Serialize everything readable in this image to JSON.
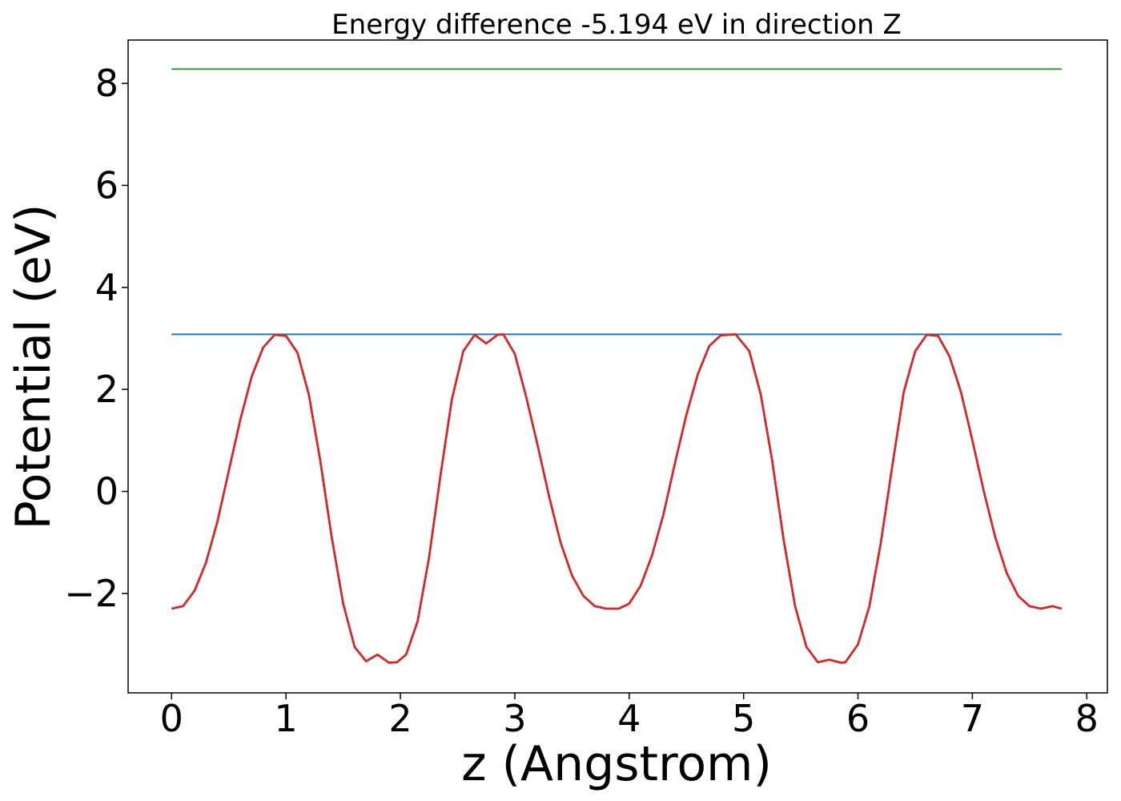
{
  "chart_data": {
    "type": "line",
    "title": "Energy difference -5.194 eV in direction Z",
    "xlabel": "z (Angstrom)",
    "ylabel": "Potential (eV)",
    "xlim": [
      -0.38,
      8.18
    ],
    "ylim": [
      -3.95,
      8.85
    ],
    "xticks": [
      0,
      1,
      2,
      3,
      4,
      5,
      6,
      7,
      8
    ],
    "xtick_labels": [
      "0",
      "1",
      "2",
      "3",
      "4",
      "5",
      "6",
      "7",
      "8"
    ],
    "yticks": [
      -2,
      0,
      2,
      4,
      6,
      8
    ],
    "ytick_labels": [
      "−2",
      "0",
      "2",
      "4",
      "6",
      "8"
    ],
    "grid": false,
    "series": [
      {
        "color": "#2ca02c",
        "x": [
          0.0,
          7.78
        ],
        "y": [
          8.28,
          8.28
        ]
      },
      {
        "color": "#1f77b4",
        "x": [
          0.0,
          7.78
        ],
        "y": [
          3.08,
          3.08
        ]
      },
      {
        "color": "#d62728",
        "x": [
          0.0,
          0.1,
          0.2,
          0.3,
          0.4,
          0.5,
          0.6,
          0.7,
          0.8,
          0.9,
          1.0,
          1.1,
          1.2,
          1.3,
          1.4,
          1.5,
          1.6,
          1.7,
          1.8,
          1.9,
          1.97,
          2.05,
          2.15,
          2.25,
          2.35,
          2.45,
          2.55,
          2.65,
          2.75,
          2.85,
          2.9,
          3.0,
          3.1,
          3.2,
          3.3,
          3.4,
          3.5,
          3.6,
          3.7,
          3.8,
          3.91,
          4.0,
          4.1,
          4.2,
          4.3,
          4.4,
          4.5,
          4.6,
          4.7,
          4.8,
          4.93,
          5.05,
          5.15,
          5.25,
          5.35,
          5.45,
          5.55,
          5.65,
          5.75,
          5.85,
          5.89,
          6.0,
          6.1,
          6.2,
          6.3,
          6.4,
          6.5,
          6.6,
          6.7,
          6.8,
          6.9,
          7.0,
          7.1,
          7.2,
          7.3,
          7.4,
          7.5,
          7.6,
          7.7,
          7.78
        ],
        "y": [
          -2.3,
          -2.25,
          -1.95,
          -1.4,
          -0.6,
          0.4,
          1.4,
          2.25,
          2.82,
          3.07,
          3.05,
          2.72,
          1.9,
          0.6,
          -0.9,
          -2.2,
          -3.05,
          -3.33,
          -3.2,
          -3.36,
          -3.35,
          -3.2,
          -2.55,
          -1.3,
          0.3,
          1.8,
          2.75,
          3.07,
          2.9,
          3.07,
          3.08,
          2.7,
          1.85,
          0.9,
          -0.1,
          -1.0,
          -1.65,
          -2.05,
          -2.25,
          -2.3,
          -2.3,
          -2.2,
          -1.85,
          -1.25,
          -0.45,
          0.55,
          1.5,
          2.3,
          2.85,
          3.06,
          3.08,
          2.75,
          1.9,
          0.6,
          -0.95,
          -2.25,
          -3.05,
          -3.35,
          -3.3,
          -3.36,
          -3.35,
          -3.0,
          -2.25,
          -1.0,
          0.5,
          1.95,
          2.75,
          3.07,
          3.05,
          2.65,
          1.95,
          1.0,
          0.0,
          -0.9,
          -1.6,
          -2.05,
          -2.25,
          -2.3,
          -2.25,
          -2.3
        ]
      }
    ]
  }
}
